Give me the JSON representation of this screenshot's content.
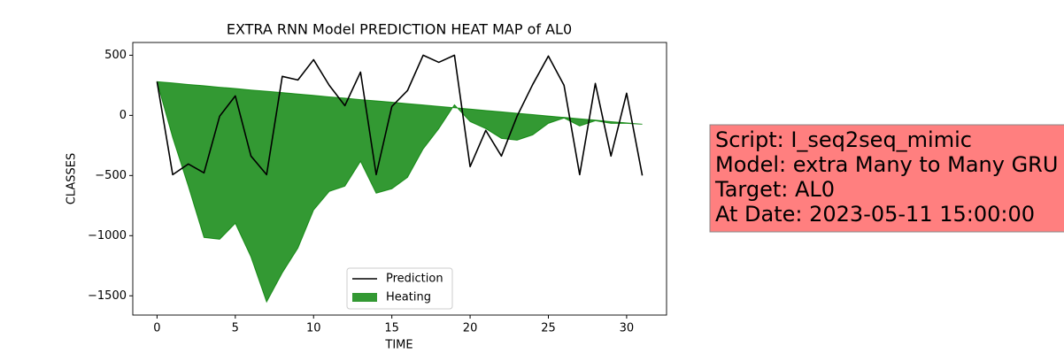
{
  "chart_data": {
    "type": "line",
    "title": "EXTRA RNN Model PREDICTION HEAT MAP of AL0",
    "x_label": "TIME",
    "y_label": "CLASSES",
    "x": [
      0,
      1,
      2,
      3,
      4,
      5,
      6,
      7,
      8,
      9,
      10,
      11,
      12,
      13,
      14,
      15,
      16,
      17,
      18,
      19,
      20,
      21,
      22,
      23,
      24,
      25,
      26,
      27,
      28,
      29,
      30,
      31
    ],
    "series": [
      {
        "name": "Prediction",
        "color": "#000000",
        "kind": "line",
        "values": [
          280,
          -493,
          -404,
          -478,
          -7,
          162,
          -338,
          -493,
          324,
          294,
          463,
          250,
          81,
          360,
          -493,
          74,
          206,
          500,
          441,
          500,
          -426,
          -125,
          -338,
          -7,
          257,
          493,
          250,
          -493,
          265,
          -338,
          184,
          -500
        ]
      },
      {
        "name": "Heating",
        "color": "#008000",
        "alpha": 0.8,
        "kind": "fill",
        "values": [
          280,
          -184,
          -588,
          -1015,
          -1030,
          -897,
          -1176,
          -1551,
          -1309,
          -1103,
          -787,
          -632,
          -588,
          -382,
          -647,
          -610,
          -515,
          -279,
          -110,
          88,
          -51,
          -110,
          -191,
          -206,
          -162,
          -66,
          -22,
          -88,
          -44,
          -66,
          -66,
          -74
        ],
        "upper": [
          280,
          269,
          257,
          246,
          234,
          223,
          211,
          200,
          189,
          177,
          166,
          154,
          143,
          131,
          120,
          109,
          97,
          86,
          74,
          63,
          52,
          40,
          29,
          17,
          6,
          -6,
          -17,
          -29,
          -40,
          -52,
          -63,
          -74
        ]
      }
    ],
    "xlim": [
      -1.55,
      32.55
    ],
    "ylim": [
      -1660,
      606
    ],
    "xticks": [
      0,
      5,
      10,
      15,
      20,
      25,
      30
    ],
    "yticks": [
      {
        "value": -1500,
        "label": "−1500"
      },
      {
        "value": -1000,
        "label": "−1000"
      },
      {
        "value": -500,
        "label": "−500"
      },
      0,
      500
    ],
    "legend": "lower center",
    "annotation": {
      "lines": [
        "Script: I_seq2seq_mimic",
        "Model: extra Many to Many GRU",
        "Target: AL0",
        "At Date: 2023-05-11 15:00:00"
      ],
      "color": "#ff7f7f"
    }
  }
}
